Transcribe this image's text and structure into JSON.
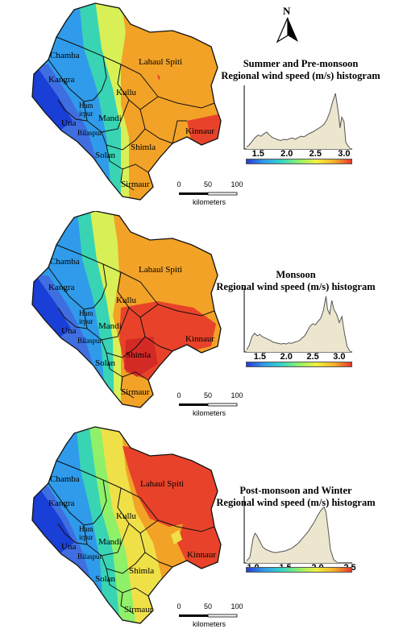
{
  "north_arrow": {
    "letter": "N"
  },
  "districts": {
    "chamba": "Chamba",
    "kangra": "Kangra",
    "lahaul_spiti": "Lahaul Spiti",
    "kullu": "Kullu",
    "mandi": "Mandi",
    "hamirpur_top": "Ham",
    "hamirpur_bottom": "irpur",
    "una": "Una",
    "bilaspur": "Bilaspur",
    "kinnaur": "Kinnaur",
    "shimla": "Shimla",
    "solan": "Solan",
    "sirmaur": "Sirmaur"
  },
  "scale_bar": {
    "ticks": [
      "0",
      "50",
      "100"
    ],
    "unit": "kilometers"
  },
  "panels": [
    {
      "season": "summer",
      "title_line1": "Summer and Pre-monsoon",
      "title_line2": "Regional wind speed (m/s) histogram",
      "x_ticks": [
        "1.5",
        "2.0",
        "2.5",
        "3.0"
      ],
      "x_tick_values": [
        1.5,
        2.0,
        2.5,
        3.0
      ],
      "x_range": [
        1.3,
        3.1
      ],
      "histogram": [
        [
          1.3,
          0.02
        ],
        [
          1.35,
          0.06
        ],
        [
          1.4,
          0.12
        ],
        [
          1.45,
          0.18
        ],
        [
          1.5,
          0.22
        ],
        [
          1.55,
          0.2
        ],
        [
          1.6,
          0.24
        ],
        [
          1.65,
          0.27
        ],
        [
          1.7,
          0.22
        ],
        [
          1.75,
          0.18
        ],
        [
          1.8,
          0.16
        ],
        [
          1.85,
          0.14
        ],
        [
          1.9,
          0.13
        ],
        [
          1.95,
          0.15
        ],
        [
          2.0,
          0.14
        ],
        [
          2.05,
          0.16
        ],
        [
          2.1,
          0.17
        ],
        [
          2.15,
          0.15
        ],
        [
          2.2,
          0.18
        ],
        [
          2.25,
          0.2
        ],
        [
          2.3,
          0.19
        ],
        [
          2.35,
          0.22
        ],
        [
          2.4,
          0.25
        ],
        [
          2.45,
          0.27
        ],
        [
          2.5,
          0.3
        ],
        [
          2.55,
          0.33
        ],
        [
          2.6,
          0.36
        ],
        [
          2.65,
          0.4
        ],
        [
          2.7,
          0.48
        ],
        [
          2.75,
          0.6
        ],
        [
          2.8,
          0.78
        ],
        [
          2.85,
          0.92
        ],
        [
          2.88,
          0.72
        ],
        [
          2.9,
          0.6
        ],
        [
          2.93,
          0.34
        ],
        [
          2.96,
          0.52
        ],
        [
          3.0,
          0.44
        ],
        [
          3.03,
          0.1
        ],
        [
          3.06,
          0.05
        ],
        [
          3.1,
          0.0
        ]
      ],
      "zones": [
        {
          "region": "west",
          "color": "#1a3fd6"
        },
        {
          "region": "west-mid",
          "color": "#2f9bea"
        },
        {
          "region": "mid",
          "color": "#39d4b4"
        },
        {
          "region": "center-north",
          "color": "#d8f056"
        },
        {
          "region": "east",
          "color": "#f2a226"
        },
        {
          "region": "southeast",
          "color": "#e8432a"
        }
      ]
    },
    {
      "season": "monsoon",
      "title_line1": "Monsoon",
      "title_line2": "Regional wind speed (m/s) histogram",
      "x_ticks": [
        "1.5",
        "2.0",
        "2.5",
        "3.0"
      ],
      "x_tick_values": [
        1.5,
        2.0,
        2.5,
        3.0
      ],
      "x_range": [
        1.25,
        3.2
      ],
      "histogram": [
        [
          1.25,
          0.02
        ],
        [
          1.3,
          0.1
        ],
        [
          1.35,
          0.24
        ],
        [
          1.4,
          0.3
        ],
        [
          1.45,
          0.26
        ],
        [
          1.5,
          0.28
        ],
        [
          1.55,
          0.24
        ],
        [
          1.6,
          0.22
        ],
        [
          1.65,
          0.2
        ],
        [
          1.7,
          0.18
        ],
        [
          1.75,
          0.15
        ],
        [
          1.8,
          0.14
        ],
        [
          1.85,
          0.13
        ],
        [
          1.9,
          0.12
        ],
        [
          1.95,
          0.13
        ],
        [
          2.0,
          0.12
        ],
        [
          2.05,
          0.14
        ],
        [
          2.1,
          0.13
        ],
        [
          2.15,
          0.15
        ],
        [
          2.2,
          0.16
        ],
        [
          2.25,
          0.18
        ],
        [
          2.3,
          0.22
        ],
        [
          2.35,
          0.26
        ],
        [
          2.4,
          0.34
        ],
        [
          2.45,
          0.42
        ],
        [
          2.5,
          0.46
        ],
        [
          2.55,
          0.44
        ],
        [
          2.6,
          0.5
        ],
        [
          2.65,
          0.55
        ],
        [
          2.7,
          0.68
        ],
        [
          2.75,
          0.92
        ],
        [
          2.78,
          0.7
        ],
        [
          2.82,
          0.62
        ],
        [
          2.86,
          0.85
        ],
        [
          2.9,
          0.7
        ],
        [
          2.95,
          0.62
        ],
        [
          3.0,
          0.48
        ],
        [
          3.05,
          0.58
        ],
        [
          3.1,
          0.3
        ],
        [
          3.15,
          0.08
        ],
        [
          3.2,
          0.0
        ]
      ]
    },
    {
      "season": "winter",
      "title_line1": "Post-monsoon and Winter",
      "title_line2": "Regional wind speed (m/s) histogram",
      "x_ticks": [
        "1.0",
        "1.5",
        "2.0",
        "2.5"
      ],
      "x_tick_values": [
        1.0,
        1.5,
        2.0,
        2.5
      ],
      "x_range": [
        0.9,
        2.5
      ],
      "histogram": [
        [
          0.9,
          0.02
        ],
        [
          0.95,
          0.08
        ],
        [
          1.0,
          0.38
        ],
        [
          1.03,
          0.46
        ],
        [
          1.06,
          0.42
        ],
        [
          1.1,
          0.34
        ],
        [
          1.15,
          0.24
        ],
        [
          1.2,
          0.2
        ],
        [
          1.25,
          0.18
        ],
        [
          1.3,
          0.16
        ],
        [
          1.35,
          0.15
        ],
        [
          1.4,
          0.16
        ],
        [
          1.45,
          0.17
        ],
        [
          1.5,
          0.18
        ],
        [
          1.55,
          0.2
        ],
        [
          1.6,
          0.22
        ],
        [
          1.65,
          0.26
        ],
        [
          1.7,
          0.3
        ],
        [
          1.75,
          0.36
        ],
        [
          1.8,
          0.42
        ],
        [
          1.85,
          0.48
        ],
        [
          1.9,
          0.56
        ],
        [
          1.95,
          0.64
        ],
        [
          2.0,
          0.74
        ],
        [
          2.05,
          0.82
        ],
        [
          2.1,
          0.88
        ],
        [
          2.13,
          0.8
        ],
        [
          2.16,
          0.56
        ],
        [
          2.2,
          0.2
        ],
        [
          2.25,
          0.04
        ],
        [
          2.3,
          0.0
        ]
      ]
    }
  ],
  "colorbar_colors": [
    "#2a3bd4",
    "#2f9be8",
    "#35d3c8",
    "#8ff06a",
    "#f0f040",
    "#f2b02a",
    "#e6362c"
  ]
}
